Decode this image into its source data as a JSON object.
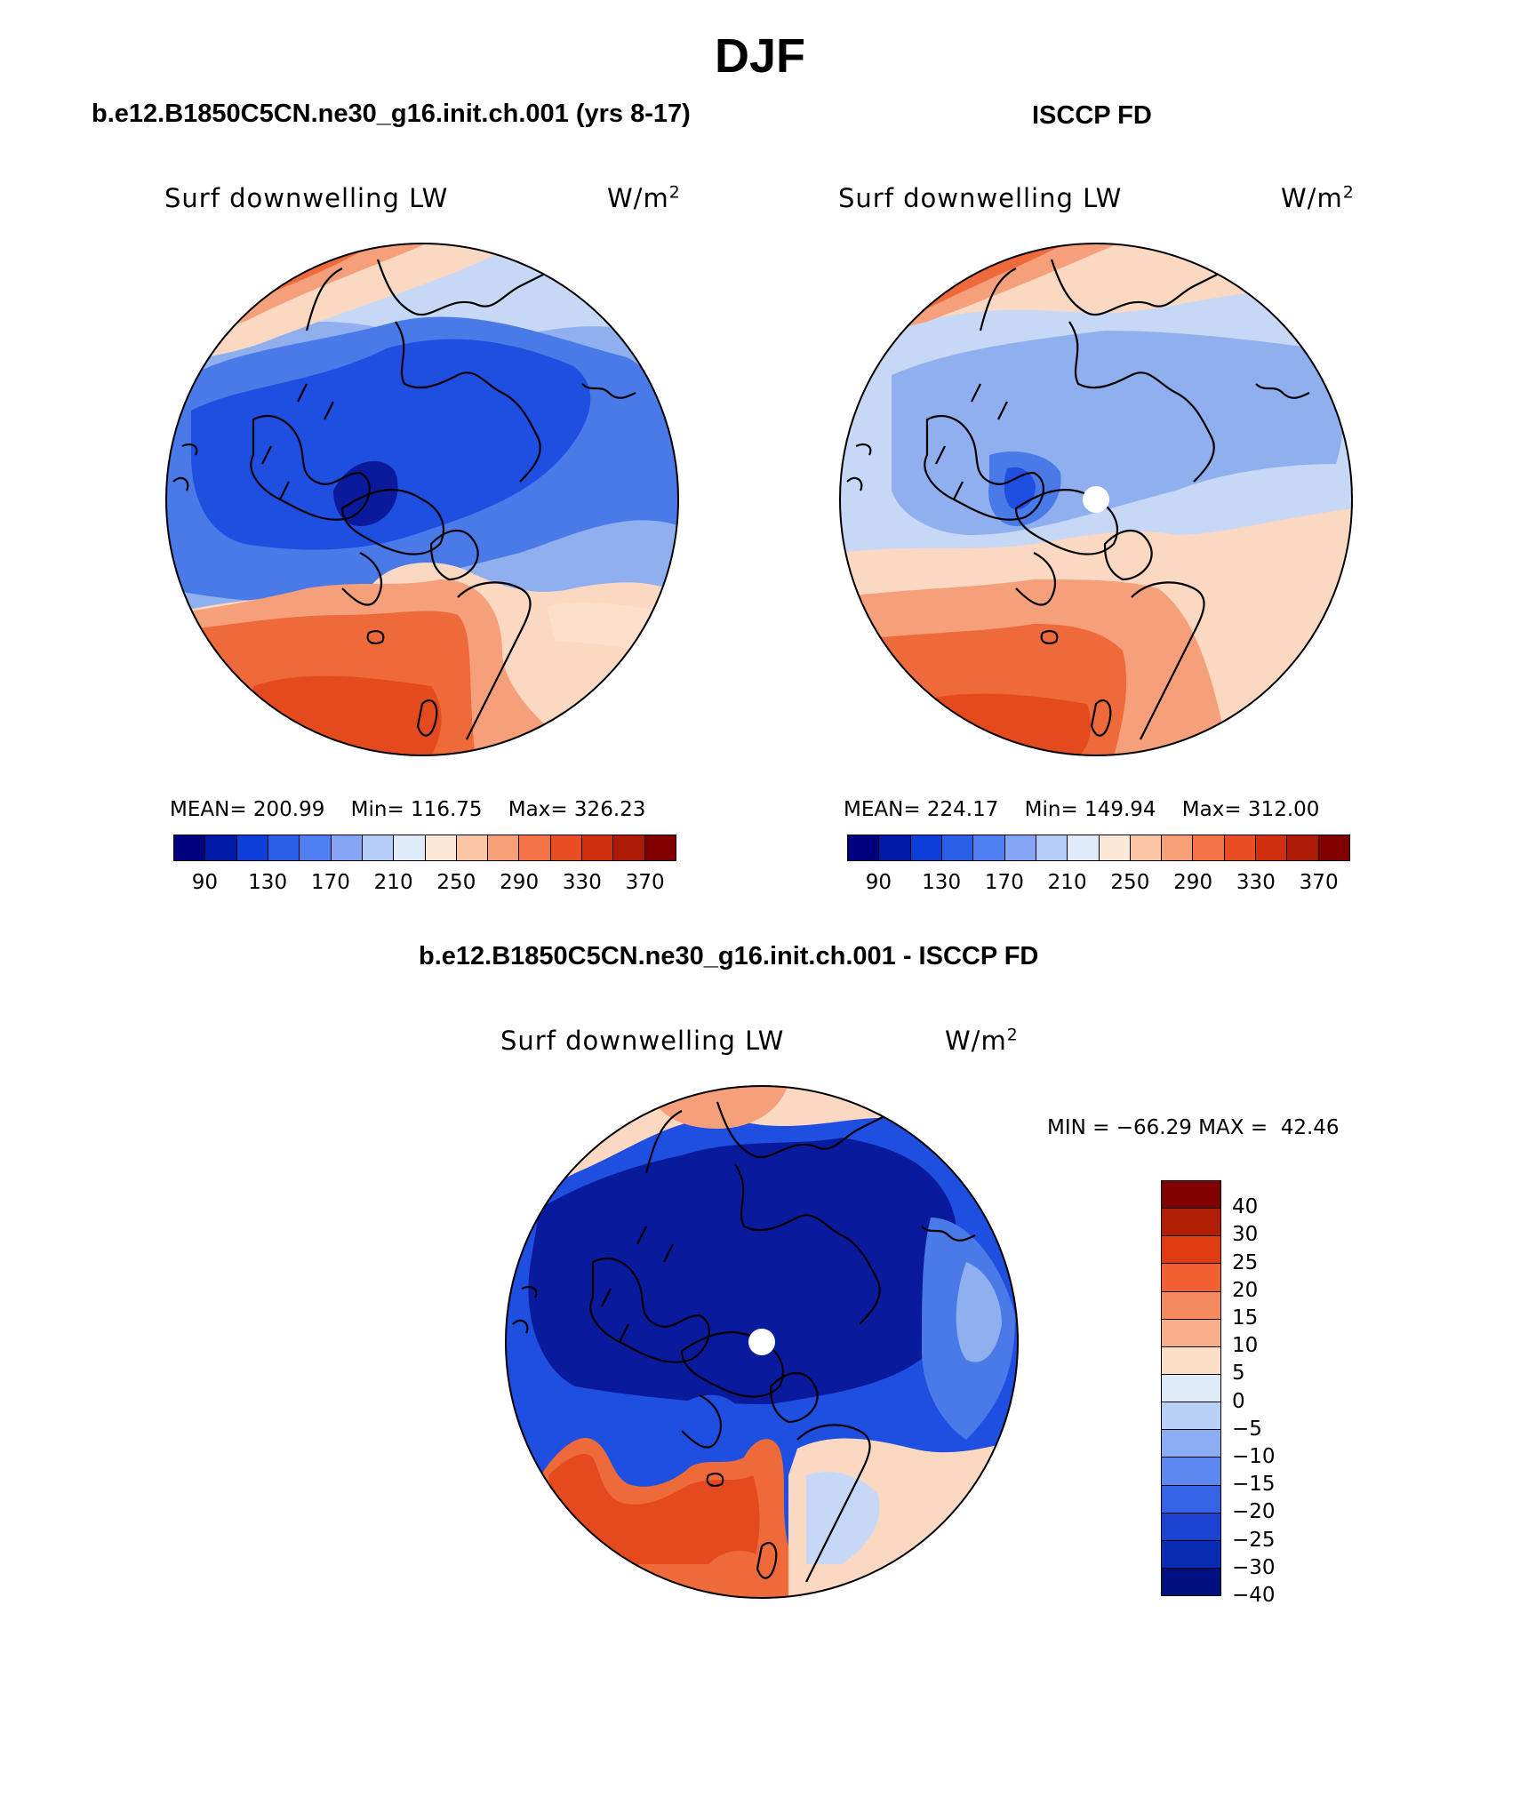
{
  "title": "DJF",
  "panels": [
    {
      "title": "b.e12.B1850C5CN.ne30_g16.init.ch.001 (yrs 8-17)",
      "variable": "Surf downwelling LW",
      "units_base": "W/m",
      "units_exp": "2",
      "stats": {
        "mean_label": "MEAN=",
        "mean": "200.99",
        "min_label": "Min=",
        "min": "116.75",
        "max_label": "Max=",
        "max": "326.23"
      }
    },
    {
      "title": "ISCCP FD",
      "variable": "Surf downwelling LW",
      "units_base": "W/m",
      "units_exp": "2",
      "stats": {
        "mean_label": "MEAN=",
        "mean": "224.17",
        "min_label": "Min=",
        "min": "149.94",
        "max_label": "Max=",
        "max": "312.00"
      }
    },
    {
      "title": "b.e12.B1850C5CN.ne30_g16.init.ch.001 - ISCCP FD",
      "variable": "Surf downwelling LW",
      "units_base": "W/m",
      "units_exp": "2",
      "stats": {
        "min_label": "MIN =",
        "min": "−66.29",
        "max_label": "MAX =",
        "max": "42.46"
      }
    }
  ],
  "colorbar_abs": {
    "colors": [
      "#00007f",
      "#001aa8",
      "#0d3fd8",
      "#2a5fe8",
      "#4f7ff0",
      "#85a6f5",
      "#b6cdf8",
      "#dfeaf9",
      "#fde8d8",
      "#fbc5a6",
      "#f79f76",
      "#f27447",
      "#e84d24",
      "#d1300f",
      "#ad1a06",
      "#800000"
    ],
    "ticks": [
      "90",
      "130",
      "170",
      "210",
      "250",
      "290",
      "330",
      "370"
    ]
  },
  "colorbar_diff": {
    "colors": [
      "#800000",
      "#b01e04",
      "#df3c10",
      "#f06030",
      "#f48a5e",
      "#f8ae8a",
      "#fbdcc5",
      "#dfebf8",
      "#b8cff6",
      "#8aacf3",
      "#5c88ef",
      "#3463e6",
      "#1a43d2",
      "#0a2cb4",
      "#00117f"
    ],
    "labels": [
      "40",
      "30",
      "25",
      "20",
      "15",
      "10",
      "5",
      "0",
      "−5",
      "−10",
      "−15",
      "−20",
      "−25",
      "−30",
      "−40"
    ]
  },
  "map_colors": {
    "deep_blue": "#0a1a9c",
    "blue": "#1f4fe0",
    "mid_blue": "#4a7ae8",
    "light_blue": "#90afef",
    "pale_blue": "#c7d8f6",
    "pale_orange": "#fbd8c2",
    "light_orange": "#f5a07a",
    "orange": "#ef6a3a",
    "red_orange": "#e44a1e"
  }
}
